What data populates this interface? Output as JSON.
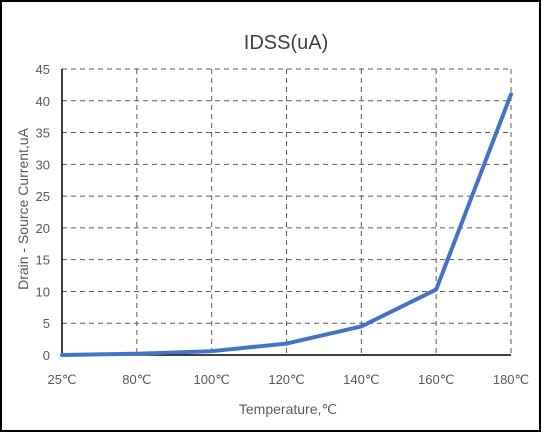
{
  "chart_data": {
    "type": "line",
    "title": "IDSS(uA)",
    "xlabel": "Temperature,℃",
    "ylabel": "Drain - Source Current,uA",
    "categories": [
      "25℃",
      "80℃",
      "100℃",
      "120℃",
      "140℃",
      "160℃",
      "180℃"
    ],
    "series": [
      {
        "values": [
          0,
          0.2,
          0.6,
          1.8,
          4.5,
          10.3,
          41
        ]
      }
    ],
    "ylim": [
      0,
      45
    ],
    "yticks": [
      "0",
      "5",
      "10",
      "15",
      "20",
      "25",
      "30",
      "35",
      "40",
      "45"
    ],
    "grid": true,
    "legend": "none",
    "colors": {
      "line": "#4472C4",
      "grid": "#595959",
      "text": "#595959"
    }
  }
}
